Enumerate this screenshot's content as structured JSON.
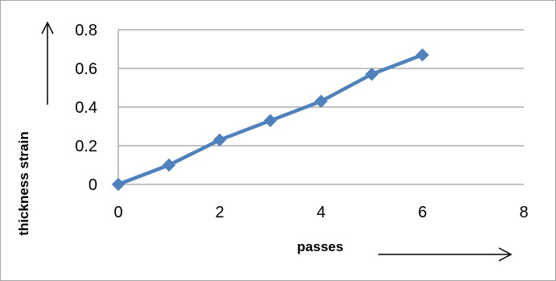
{
  "chart_data": {
    "type": "line",
    "title": "",
    "xlabel": "passes",
    "ylabel": "thickness strain",
    "xlim": [
      0,
      8
    ],
    "ylim": [
      0,
      0.8
    ],
    "xticks": [
      "0",
      "2",
      "4",
      "6",
      "8"
    ],
    "yticks": [
      "0",
      "0.2",
      "0.4",
      "0.6",
      "0.8"
    ],
    "grid": true,
    "legend": "none",
    "series": [
      {
        "color": "#4f81bd",
        "marker": "diamond",
        "x": [
          0,
          1,
          2,
          3,
          4,
          5,
          6
        ],
        "y": [
          0,
          0.1,
          0.23,
          0.33,
          0.43,
          0.57,
          0.67
        ]
      }
    ]
  }
}
